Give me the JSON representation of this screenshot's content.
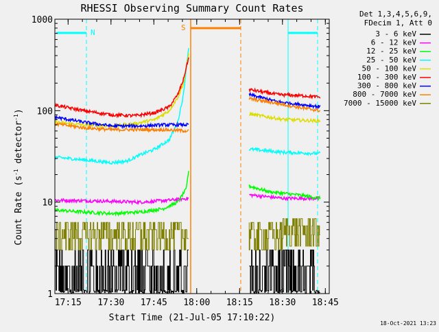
{
  "chart_data": {
    "type": "line",
    "title": "RHESSI Observing Summary Count Rates",
    "xlabel": "Start Time (21-Jul-05 17:10:22)",
    "ylabel_main": "Count Rate (s",
    "ylabel_sup1": "-1",
    "ylabel_mid": " detector",
    "ylabel_sup2": "-1",
    "ylabel_end": ")",
    "yscale": "log",
    "ylim": [
      1,
      1000
    ],
    "xlim_minutes": [
      0,
      96
    ],
    "x_tick_labels": [
      "17:15",
      "17:30",
      "17:45",
      "18:00",
      "18:15",
      "18:30",
      "18:45"
    ],
    "x_tick_minutes": [
      4.63,
      19.63,
      34.63,
      49.63,
      64.63,
      79.63,
      94.63
    ],
    "y_tick_labels": [
      "1",
      "10",
      "100",
      "1000"
    ],
    "y_tick_values": [
      1,
      10,
      100,
      1000
    ],
    "legend_header": [
      "Det 1,3,4,5,6,9,",
      "FDecim 1, Att 0"
    ],
    "series": [
      {
        "name": "3 - 6 keV",
        "color": "#000000",
        "kind": "noisy",
        "values": [
          [
            0,
            1.9
          ],
          [
            47,
            1.9
          ],
          [
            68,
            1.9
          ],
          [
            93,
            1.9
          ]
        ]
      },
      {
        "name": "6 - 12 keV",
        "color": "#ff00ff",
        "kind": "seg",
        "values": [
          [
            0,
            10.5
          ],
          [
            15,
            10.3
          ],
          [
            30,
            10
          ],
          [
            40,
            10.5
          ],
          [
            47,
            11
          ],
          [
            68,
            12
          ],
          [
            80,
            11
          ],
          [
            93,
            11
          ]
        ]
      },
      {
        "name": "12 - 25 keV",
        "color": "#00ff00",
        "kind": "seg",
        "values": [
          [
            0,
            8.2
          ],
          [
            10,
            7.8
          ],
          [
            20,
            7.5
          ],
          [
            30,
            7.8
          ],
          [
            38,
            8.5
          ],
          [
            43,
            10
          ],
          [
            46,
            14
          ],
          [
            47,
            25
          ],
          [
            68,
            15
          ],
          [
            75,
            13
          ],
          [
            85,
            12
          ],
          [
            93,
            11
          ]
        ]
      },
      {
        "name": "25 - 50 keV",
        "color": "#00ffff",
        "kind": "seg",
        "values": [
          [
            0,
            31
          ],
          [
            10,
            29
          ],
          [
            20,
            27
          ],
          [
            25,
            28
          ],
          [
            30,
            33
          ],
          [
            35,
            38
          ],
          [
            40,
            48
          ],
          [
            43,
            75
          ],
          [
            45,
            150
          ],
          [
            46,
            300
          ],
          [
            47,
            550
          ],
          [
            68,
            38
          ],
          [
            80,
            35
          ],
          [
            93,
            34
          ]
        ]
      },
      {
        "name": "50 - 100 keV",
        "color": "#dddd00",
        "kind": "seg",
        "values": [
          [
            0,
            75
          ],
          [
            10,
            70
          ],
          [
            20,
            68
          ],
          [
            28,
            72
          ],
          [
            35,
            80
          ],
          [
            40,
            100
          ],
          [
            43,
            140
          ],
          [
            45,
            200
          ],
          [
            46,
            300
          ],
          [
            47,
            450
          ],
          [
            68,
            92
          ],
          [
            80,
            80
          ],
          [
            93,
            77
          ]
        ]
      },
      {
        "name": "100 - 300 keV",
        "color": "#ff0000",
        "kind": "seg",
        "values": [
          [
            0,
            115
          ],
          [
            10,
            100
          ],
          [
            20,
            90
          ],
          [
            28,
            88
          ],
          [
            35,
            95
          ],
          [
            40,
            110
          ],
          [
            43,
            150
          ],
          [
            45,
            220
          ],
          [
            46,
            300
          ],
          [
            47,
            400
          ],
          [
            68,
            170
          ],
          [
            78,
            150
          ],
          [
            88,
            145
          ],
          [
            93,
            140
          ]
        ]
      },
      {
        "name": "300 - 800 keV",
        "color": "#0000ff",
        "kind": "seg",
        "values": [
          [
            0,
            85
          ],
          [
            10,
            75
          ],
          [
            20,
            68
          ],
          [
            30,
            68
          ],
          [
            38,
            70
          ],
          [
            47,
            70
          ],
          [
            68,
            150
          ],
          [
            78,
            125
          ],
          [
            88,
            115
          ],
          [
            93,
            110
          ]
        ]
      },
      {
        "name": "800 - 7000 keV",
        "color": "#ff8000",
        "kind": "seg",
        "values": [
          [
            0,
            72
          ],
          [
            10,
            65
          ],
          [
            20,
            62
          ],
          [
            30,
            62
          ],
          [
            38,
            62
          ],
          [
            47,
            60
          ],
          [
            68,
            135
          ],
          [
            78,
            120
          ],
          [
            88,
            105
          ],
          [
            93,
            100
          ]
        ]
      },
      {
        "name": "7000 - 15000 keV",
        "color": "#808000",
        "kind": "noisy",
        "values": [
          [
            0,
            4.3
          ],
          [
            47,
            4.3
          ],
          [
            68,
            4.5
          ],
          [
            93,
            5.5
          ]
        ]
      }
    ],
    "annotations": [
      {
        "text": "N",
        "color": "#00ffff"
      },
      {
        "text": "S",
        "color": "#ff8000"
      }
    ],
    "timestamp": "18-Oct-2021 13:23"
  }
}
